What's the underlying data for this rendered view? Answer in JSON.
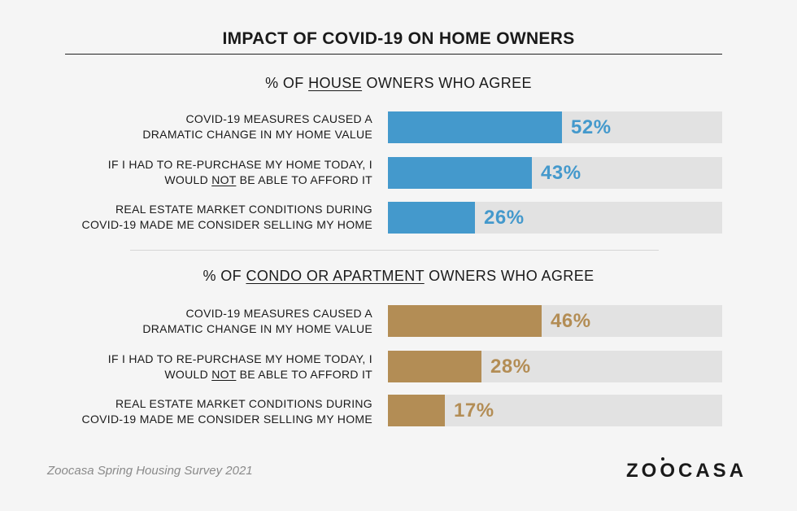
{
  "header": {
    "title": "IMPACT OF COVID-19 ON HOME OWNERS"
  },
  "chart_data": [
    {
      "type": "bar",
      "orientation": "horizontal",
      "title_parts": [
        "% OF ",
        "HOUSE",
        " OWNERS WHO AGREE"
      ],
      "color": "#4499cc",
      "xlim": [
        0,
        100
      ],
      "rows": [
        {
          "parts": [
            "COVID-19 MEASURES CAUSED A",
            "DRAMATIC CHANGE IN MY HOME VALUE"
          ],
          "value": 52,
          "label": "52%"
        },
        {
          "parts": [
            "IF I HAD TO RE-PURCHASE MY HOME TODAY, I",
            "WOULD ",
            "NOT",
            " BE ABLE TO AFFORD IT"
          ],
          "value": 43,
          "label": "43%"
        },
        {
          "parts": [
            "REAL ESTATE MARKET CONDITIONS DURING",
            "COVID-19 MADE ME CONSIDER SELLING MY HOME"
          ],
          "value": 26,
          "label": "26%"
        }
      ]
    },
    {
      "type": "bar",
      "orientation": "horizontal",
      "title_parts": [
        "% OF ",
        "CONDO OR APARTMENT",
        " OWNERS WHO AGREE"
      ],
      "color": "#b38d55",
      "xlim": [
        0,
        100
      ],
      "rows": [
        {
          "parts": [
            "COVID-19 MEASURES CAUSED A",
            "DRAMATIC CHANGE IN MY HOME VALUE"
          ],
          "value": 46,
          "label": "46%"
        },
        {
          "parts": [
            "IF I HAD TO RE-PURCHASE MY HOME TODAY, I",
            "WOULD ",
            "NOT",
            " BE ABLE TO AFFORD IT"
          ],
          "value": 28,
          "label": "28%"
        },
        {
          "parts": [
            "REAL ESTATE MARKET CONDITIONS DURING",
            "COVID-19 MADE ME CONSIDER SELLING MY HOME"
          ],
          "value": 17,
          "label": "17%"
        }
      ]
    }
  ],
  "footer": {
    "source": "Zoocasa Spring Housing Survey 2021",
    "logo_parts": [
      "Z",
      "O",
      "O",
      "CASA"
    ]
  }
}
